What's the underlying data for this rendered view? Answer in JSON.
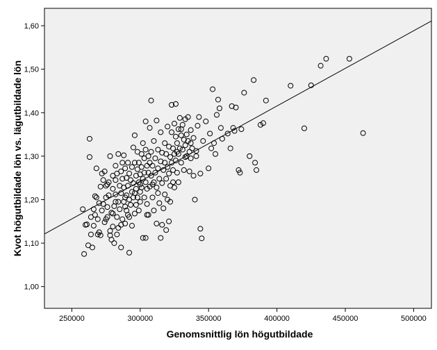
{
  "chart_data": {
    "type": "scatter",
    "title": "",
    "xlabel": "Genomsnittlig lön högutbildade",
    "ylabel": "Kvot högutbildade lön vs. lägutbildade lön",
    "xlim": [
      230000,
      513000
    ],
    "ylim": [
      0.95,
      1.64
    ],
    "x_ticks": [
      250000,
      300000,
      350000,
      400000,
      450000,
      500000
    ],
    "x_tick_labels": [
      "250000",
      "300000",
      "350000",
      "400000",
      "450000",
      "500000"
    ],
    "y_ticks": [
      1.0,
      1.1,
      1.2,
      1.3,
      1.4,
      1.5,
      1.6
    ],
    "y_tick_labels": [
      "1,00",
      "1,10",
      "1,20",
      "1,30",
      "1,40",
      "1,50",
      "1,60"
    ],
    "grid": false,
    "fit_line": {
      "x": [
        230000,
        513000
      ],
      "y": [
        1.121,
        1.611
      ]
    },
    "colors": {
      "plot_background": "#f0f0f0",
      "marker_stroke": "#000000",
      "line": "#000000"
    },
    "points": [
      [
        258000,
        1.178
      ],
      [
        259000,
        1.075
      ],
      [
        261000,
        1.143
      ],
      [
        262000,
        1.095
      ],
      [
        263000,
        1.34
      ],
      [
        263000,
        1.298
      ],
      [
        264000,
        1.16
      ],
      [
        265000,
        1.09
      ],
      [
        266000,
        1.14
      ],
      [
        267000,
        1.208
      ],
      [
        267000,
        1.165
      ],
      [
        268000,
        1.272
      ],
      [
        268000,
        1.205
      ],
      [
        269000,
        1.155
      ],
      [
        270000,
        1.192
      ],
      [
        270000,
        1.125
      ],
      [
        271000,
        1.23
      ],
      [
        271000,
        1.118
      ],
      [
        272000,
        1.26
      ],
      [
        272000,
        1.175
      ],
      [
        273000,
        1.245
      ],
      [
        273000,
        1.19
      ],
      [
        274000,
        1.148
      ],
      [
        274000,
        1.265
      ],
      [
        275000,
        1.232
      ],
      [
        275000,
        1.205
      ],
      [
        276000,
        1.183
      ],
      [
        276000,
        1.16
      ],
      [
        277000,
        1.24
      ],
      [
        277000,
        1.21
      ],
      [
        278000,
        1.3
      ],
      [
        278000,
        1.128
      ],
      [
        279000,
        1.17
      ],
      [
        279000,
        1.108
      ],
      [
        280000,
        1.255
      ],
      [
        280000,
        1.225
      ],
      [
        280000,
        1.138
      ],
      [
        281000,
        1.185
      ],
      [
        281000,
        1.1
      ],
      [
        282000,
        1.278
      ],
      [
        282000,
        1.245
      ],
      [
        282000,
        1.212
      ],
      [
        283000,
        1.16
      ],
      [
        283000,
        1.26
      ],
      [
        284000,
        1.305
      ],
      [
        284000,
        1.195
      ],
      [
        284000,
        1.135
      ],
      [
        285000,
        1.232
      ],
      [
        285000,
        1.178
      ],
      [
        286000,
        1.265
      ],
      [
        286000,
        1.215
      ],
      [
        286000,
        1.09
      ],
      [
        287000,
        1.285
      ],
      [
        287000,
        1.248
      ],
      [
        287000,
        1.155
      ],
      [
        288000,
        1.195
      ],
      [
        288000,
        1.228
      ],
      [
        289000,
        1.272
      ],
      [
        289000,
        1.184
      ],
      [
        289000,
        1.145
      ],
      [
        290000,
        1.25
      ],
      [
        290000,
        1.21
      ],
      [
        290000,
        1.175
      ],
      [
        291000,
        1.285
      ],
      [
        291000,
        1.232
      ],
      [
        291000,
        1.165
      ],
      [
        292000,
        1.26
      ],
      [
        292000,
        1.2
      ],
      [
        292000,
        1.078
      ],
      [
        293000,
        1.245
      ],
      [
        293000,
        1.188
      ],
      [
        294000,
        1.275
      ],
      [
        294000,
        1.218
      ],
      [
        294000,
        1.14
      ],
      [
        295000,
        1.32
      ],
      [
        295000,
        1.238
      ],
      [
        295000,
        1.205
      ],
      [
        296000,
        1.168
      ],
      [
        296000,
        1.348
      ],
      [
        297000,
        1.255
      ],
      [
        297000,
        1.225
      ],
      [
        297000,
        1.188
      ],
      [
        298000,
        1.31
      ],
      [
        298000,
        1.27
      ],
      [
        298000,
        1.205
      ],
      [
        299000,
        1.24
      ],
      [
        299000,
        1.175
      ],
      [
        299000,
        1.285
      ],
      [
        300000,
        1.258
      ],
      [
        300000,
        1.218
      ],
      [
        300000,
        1.195
      ],
      [
        301000,
        1.305
      ],
      [
        301000,
        1.275
      ],
      [
        301000,
        1.228
      ],
      [
        302000,
        1.33
      ],
      [
        302000,
        1.248
      ],
      [
        302000,
        1.112
      ],
      [
        303000,
        1.295
      ],
      [
        303000,
        1.262
      ],
      [
        303000,
        1.205
      ],
      [
        304000,
        1.38
      ],
      [
        304000,
        1.315
      ],
      [
        304000,
        1.24
      ],
      [
        305000,
        1.278
      ],
      [
        305000,
        1.225
      ],
      [
        305000,
        1.19
      ],
      [
        306000,
        1.3
      ],
      [
        306000,
        1.262
      ],
      [
        306000,
        1.165
      ],
      [
        307000,
        1.365
      ],
      [
        307000,
        1.23
      ],
      [
        307000,
        1.285
      ],
      [
        308000,
        1.428
      ],
      [
        308000,
        1.31
      ],
      [
        308000,
        1.255
      ],
      [
        309000,
        1.278
      ],
      [
        309000,
        1.205
      ],
      [
        310000,
        1.335
      ],
      [
        310000,
        1.24
      ],
      [
        310000,
        1.175
      ],
      [
        311000,
        1.295
      ],
      [
        311000,
        1.262
      ],
      [
        312000,
        1.382
      ],
      [
        312000,
        1.228
      ],
      [
        312000,
        1.145
      ],
      [
        313000,
        1.315
      ],
      [
        313000,
        1.272
      ],
      [
        314000,
        1.248
      ],
      [
        314000,
        1.192
      ],
      [
        315000,
        1.355
      ],
      [
        315000,
        1.288
      ],
      [
        315000,
        1.112
      ],
      [
        316000,
        1.308
      ],
      [
        316000,
        1.238
      ],
      [
        317000,
        1.268
      ],
      [
        317000,
        1.18
      ],
      [
        318000,
        1.33
      ],
      [
        318000,
        1.285
      ],
      [
        318000,
        1.212
      ],
      [
        319000,
        1.305
      ],
      [
        319000,
        1.248
      ],
      [
        320000,
        1.368
      ],
      [
        320000,
        1.275
      ],
      [
        320000,
        1.2
      ],
      [
        321000,
        1.322
      ],
      [
        321000,
        1.26
      ],
      [
        321000,
        1.15
      ],
      [
        322000,
        1.298
      ],
      [
        322000,
        1.232
      ],
      [
        323000,
        1.418
      ],
      [
        323000,
        1.355
      ],
      [
        323000,
        1.285
      ],
      [
        324000,
        1.318
      ],
      [
        324000,
        1.268
      ],
      [
        325000,
        1.375
      ],
      [
        325000,
        1.305
      ],
      [
        325000,
        1.228
      ],
      [
        326000,
        1.42
      ],
      [
        326000,
        1.345
      ],
      [
        326000,
        1.29
      ],
      [
        327000,
        1.33
      ],
      [
        327000,
        1.262
      ],
      [
        328000,
        1.362
      ],
      [
        328000,
        1.305
      ],
      [
        328000,
        1.24
      ],
      [
        329000,
        1.388
      ],
      [
        329000,
        1.318
      ],
      [
        330000,
        1.348
      ],
      [
        330000,
        1.285
      ],
      [
        331000,
        1.372
      ],
      [
        331000,
        1.315
      ],
      [
        332000,
        1.338
      ],
      [
        332000,
        1.268
      ],
      [
        333000,
        1.385
      ],
      [
        333000,
        1.325
      ],
      [
        334000,
        1.35
      ],
      [
        334000,
        1.3
      ],
      [
        335000,
        1.39
      ],
      [
        335000,
        1.335
      ],
      [
        336000,
        1.31
      ],
      [
        336000,
        1.265
      ],
      [
        337000,
        1.36
      ],
      [
        337000,
        1.295
      ],
      [
        338000,
        1.318
      ],
      [
        339000,
        1.342
      ],
      [
        339000,
        1.255
      ],
      [
        340000,
        1.2
      ],
      [
        341000,
        1.3
      ],
      [
        342000,
        1.37
      ],
      [
        343000,
        1.39
      ],
      [
        344000,
        1.26
      ],
      [
        344000,
        1.133
      ],
      [
        345000,
        1.111
      ],
      [
        346000,
        1.335
      ],
      [
        348000,
        1.38
      ],
      [
        350000,
        1.272
      ],
      [
        351000,
        1.352
      ],
      [
        352000,
        1.318
      ],
      [
        353000,
        1.454
      ],
      [
        354000,
        1.33
      ],
      [
        355000,
        1.305
      ],
      [
        356000,
        1.395
      ],
      [
        357000,
        1.43
      ],
      [
        358000,
        1.41
      ],
      [
        359000,
        1.365
      ],
      [
        360000,
        1.34
      ],
      [
        364000,
        1.352
      ],
      [
        366000,
        1.318
      ],
      [
        367000,
        1.415
      ],
      [
        368000,
        1.365
      ],
      [
        369000,
        1.358
      ],
      [
        370000,
        1.412
      ],
      [
        372000,
        1.268
      ],
      [
        373000,
        1.262
      ],
      [
        374000,
        1.362
      ],
      [
        376000,
        1.446
      ],
      [
        380000,
        1.3
      ],
      [
        383000,
        1.475
      ],
      [
        384000,
        1.285
      ],
      [
        385000,
        1.268
      ],
      [
        388000,
        1.372
      ],
      [
        390000,
        1.376
      ],
      [
        392000,
        1.428
      ],
      [
        410000,
        1.462
      ],
      [
        420000,
        1.364
      ],
      [
        425000,
        1.463
      ],
      [
        432000,
        1.508
      ],
      [
        436000,
        1.524
      ],
      [
        453000,
        1.524
      ],
      [
        463000,
        1.353
      ],
      [
        260000,
        1.142
      ],
      [
        264000,
        1.12
      ],
      [
        266000,
        1.178
      ],
      [
        269000,
        1.12
      ],
      [
        275000,
        1.155
      ],
      [
        278000,
        1.118
      ],
      [
        280000,
        1.168
      ],
      [
        283000,
        1.12
      ],
      [
        286000,
        1.142
      ],
      [
        289000,
        1.205
      ],
      [
        292000,
        1.16
      ],
      [
        296000,
        1.215
      ],
      [
        300000,
        1.235
      ],
      [
        305000,
        1.165
      ],
      [
        309000,
        1.235
      ],
      [
        313000,
        1.215
      ],
      [
        316000,
        1.142
      ],
      [
        319000,
        1.13
      ],
      [
        322000,
        1.195
      ],
      [
        324000,
        1.24
      ],
      [
        327000,
        1.31
      ],
      [
        330000,
        1.362
      ],
      [
        333000,
        1.298
      ],
      [
        337000,
        1.33
      ],
      [
        341000,
        1.312
      ],
      [
        304000,
        1.112
      ],
      [
        296000,
        1.285
      ],
      [
        288000,
        1.302
      ],
      [
        282000,
        1.195
      ],
      [
        276000,
        1.235
      ]
    ]
  }
}
